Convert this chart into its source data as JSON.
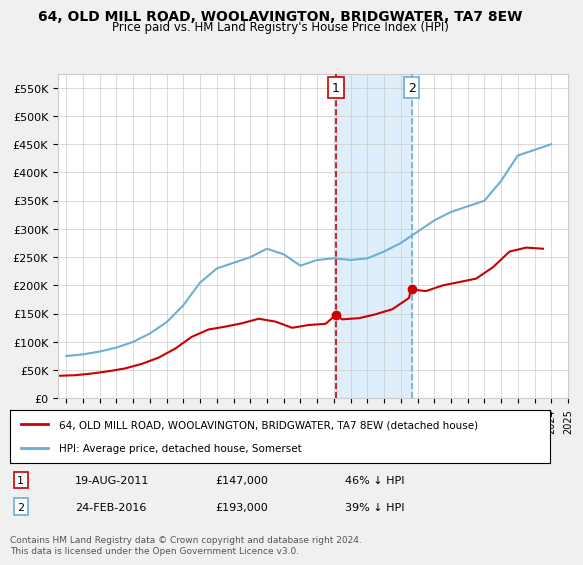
{
  "title": "64, OLD MILL ROAD, WOOLAVINGTON, BRIDGWATER, TA7 8EW",
  "subtitle": "Price paid vs. HM Land Registry's House Price Index (HPI)",
  "ylabel_ticks": [
    "£0",
    "£50K",
    "£100K",
    "£150K",
    "£200K",
    "£250K",
    "£300K",
    "£350K",
    "£400K",
    "£450K",
    "£500K",
    "£550K"
  ],
  "ytick_vals": [
    0,
    50000,
    100000,
    150000,
    200000,
    250000,
    300000,
    350000,
    400000,
    450000,
    500000,
    550000
  ],
  "ylim": [
    0,
    575000
  ],
  "bg_color": "#f0f0f0",
  "plot_bg_color": "#ffffff",
  "hpi_color": "#6baed6",
  "price_color": "#cc0000",
  "sale1_date": "2011-08-19",
  "sale1_price": 147000,
  "sale1_label": "1",
  "sale2_date": "2016-02-24",
  "sale2_price": 193000,
  "sale2_label": "2",
  "legend_line1": "64, OLD MILL ROAD, WOOLAVINGTON, BRIDGWATER, TA7 8EW (detached house)",
  "legend_line2": "HPI: Average price, detached house, Somerset",
  "table_row1": [
    "1",
    "19-AUG-2011",
    "£147,000",
    "46% ↓ HPI"
  ],
  "table_row2": [
    "2",
    "24-FEB-2016",
    "£193,000",
    "39% ↓ HPI"
  ],
  "footnote": "Contains HM Land Registry data © Crown copyright and database right 2024.\nThis data is licensed under the Open Government Licence v3.0.",
  "shade_x1_start": "2011-08-19",
  "shade_x1_end": "2016-02-24"
}
